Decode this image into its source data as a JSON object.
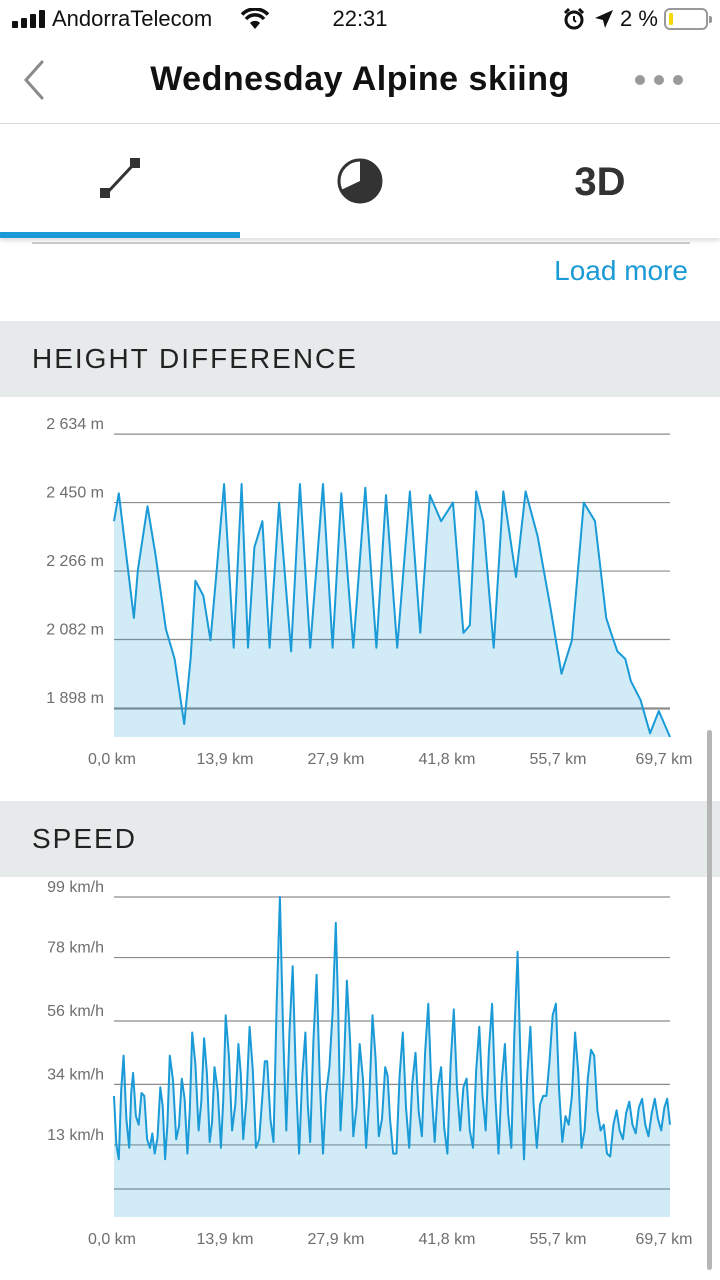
{
  "status_bar": {
    "carrier": "AndorraTelecom",
    "time": "22:31",
    "battery": "2 %"
  },
  "header": {
    "title": "Wednesday Alpine skiing"
  },
  "tabs": [
    {
      "name": "route",
      "icon": "route-line-icon",
      "selected": true
    },
    {
      "name": "pie",
      "icon": "pie-chart-icon",
      "selected": false
    },
    {
      "name": "3d",
      "label": "3D",
      "selected": false
    }
  ],
  "load_more": "Load more",
  "accent_color": "#1a9ad6",
  "height_section": {
    "title": "HEIGHT DIFFERENCE"
  },
  "speed_section": {
    "title": "SPEED"
  },
  "chart_data": [
    {
      "type": "area",
      "y_tick_labels": [
        "2 634 m",
        "2 450 m",
        "2 266 m",
        "2 082 m",
        "1 898 m"
      ],
      "y_ticks": [
        2634,
        2450,
        2266,
        2082,
        1898
      ],
      "x_tick_labels": [
        "0,0 km",
        "13,9 km",
        "27,9 km",
        "41,8 km",
        "55,7 km",
        "69,7 km"
      ],
      "x_ticks": [
        0,
        13.9,
        27.9,
        41.8,
        55.7,
        69.7
      ],
      "ylim": [
        1820,
        2680
      ],
      "xlim": [
        0,
        69.7
      ],
      "series": [
        {
          "x": [
            0,
            0.6,
            1.3,
            2.5,
            3,
            4.2,
            5.2,
            6.5,
            7.6,
            8.8,
            9.6,
            10.2,
            11.2,
            12.1,
            12.8,
            13.8,
            15,
            16,
            16.8,
            17.6,
            18.6,
            19.5,
            20.7,
            22.2,
            23.3,
            24.6,
            26.2,
            27.4,
            28.5,
            30,
            31.5,
            32.9,
            34.1,
            35.5,
            37.1,
            38.4,
            39.6,
            41,
            42.5,
            43.8,
            44.6,
            45.4,
            46.3,
            47.6,
            48.8,
            50.4,
            51.6,
            53.1,
            54.7,
            56.1,
            57.4,
            58.9,
            60.3,
            61.7,
            62.3,
            63.1,
            64.1,
            64.8,
            66,
            67.2,
            68.3,
            69.7
          ],
          "y": [
            2400,
            2475,
            2350,
            2140,
            2270,
            2440,
            2310,
            2110,
            2030,
            1855,
            2030,
            2240,
            2200,
            2080,
            2250,
            2500,
            2060,
            2500,
            2060,
            2330,
            2400,
            2060,
            2450,
            2050,
            2500,
            2060,
            2500,
            2060,
            2475,
            2060,
            2490,
            2060,
            2470,
            2060,
            2480,
            2100,
            2470,
            2400,
            2450,
            2100,
            2120,
            2480,
            2400,
            2060,
            2480,
            2250,
            2480,
            2360,
            2170,
            1990,
            2080,
            2450,
            2400,
            2140,
            2100,
            2050,
            2030,
            1970,
            1920,
            1830,
            1890,
            1820
          ]
        }
      ]
    },
    {
      "type": "line",
      "y_tick_labels": [
        "99 km/h",
        "78 km/h",
        "56 km/h",
        "34 km/h",
        "13 km/h"
      ],
      "y_ticks": [
        99,
        78,
        56,
        34,
        13
      ],
      "x_tick_labels": [
        "0,0 km",
        "13,9 km",
        "27,9 km",
        "41,8 km",
        "55,7 km",
        "69,7 km"
      ],
      "x_ticks": [
        0,
        13.9,
        27.9,
        41.8,
        55.7,
        69.7
      ],
      "ylim": [
        -12,
        99
      ],
      "xlim": [
        0,
        69.7
      ],
      "series": [
        {
          "x": [
            0,
            0.6,
            1.2,
            1.9,
            2.4,
            3.1,
            3.8,
            4.5,
            5.1,
            5.8,
            6.4,
            7.0,
            7.8,
            8.5,
            9.2,
            9.8,
            10.6,
            11.3,
            12.0,
            12.6,
            13.4,
            14.0,
            14.8,
            15.6,
            16.2,
            17.0,
            17.8,
            18.6,
            19.2,
            20.0,
            20.8,
            21.6,
            22.4,
            23.2,
            24.0,
            24.6,
            25.4,
            26.2,
            27.0,
            27.8,
            28.4,
            29.2,
            30.0,
            30.8,
            31.6,
            32.4,
            33.2,
            34.0,
            34.6,
            35.4,
            36.2,
            37.0,
            37.8,
            38.6,
            39.4,
            40.2,
            41.0,
            41.8,
            42.6,
            43.4,
            44.2,
            45.0,
            45.8,
            46.6,
            47.4,
            48.2,
            49.0,
            49.8,
            50.6,
            51.4,
            52.2,
            53.0,
            53.8,
            54.6,
            55.4,
            56.2,
            57.0,
            57.8,
            58.6,
            59.4,
            60.2,
            61.0,
            61.8,
            62.6,
            63.4,
            64.2,
            65.0,
            65.8,
            66.6,
            67.4,
            68.2,
            69.0,
            69.7
          ],
          "y": [
            30,
            8,
            44,
            12,
            38,
            20,
            30,
            12,
            10,
            33,
            8,
            44,
            15,
            36,
            10,
            52,
            18,
            50,
            14,
            40,
            12,
            58,
            18,
            48,
            15,
            54,
            12,
            30,
            42,
            14,
            99,
            18,
            75,
            10,
            52,
            14,
            72,
            10,
            40,
            90,
            18,
            70,
            16,
            48,
            12,
            58,
            16,
            40,
            22,
            10,
            52,
            12,
            45,
            16,
            62,
            14,
            40,
            10,
            60,
            18,
            36,
            12,
            54,
            18,
            62,
            10,
            48,
            12,
            80,
            8,
            54,
            12,
            30,
            42,
            62,
            14,
            20,
            52,
            12,
            36,
            44,
            18,
            10,
            20,
            18,
            24,
            20,
            26,
            20,
            24,
            22,
            26,
            20
          ]
        }
      ]
    }
  ]
}
